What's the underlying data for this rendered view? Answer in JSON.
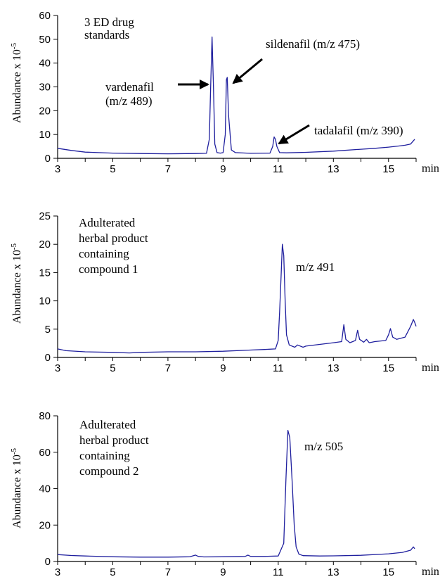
{
  "trace_color": "#1f1f9e",
  "chart_data": [
    {
      "type": "line",
      "ylabel": "Abundance x 10",
      "ylabel_exponent": "-5",
      "x_unit": "min",
      "xlim": [
        3,
        16
      ],
      "ylim": [
        0,
        60
      ],
      "x_ticks": [
        3,
        5,
        7,
        9,
        11,
        13,
        15
      ],
      "y_ticks": [
        0,
        10,
        20,
        30,
        40,
        50,
        60
      ],
      "annotations": [
        {
          "lines": [
            "3 ED drug",
            "standards"
          ]
        },
        {
          "lines": [
            "vardenafil",
            "(m/z 489)"
          ],
          "points_to": {
            "x": 8.62,
            "y": 30
          }
        },
        {
          "lines": [
            "sildenafil (m/z 475)"
          ],
          "points_to": {
            "x": 9.2,
            "y": 30
          }
        },
        {
          "lines": [
            "tadalafil (m/z 390)"
          ],
          "points_to": {
            "x": 10.9,
            "y": 9
          }
        }
      ],
      "series": [
        {
          "x": [
            3.0,
            3.5,
            4.0,
            5.0,
            6.0,
            7.0,
            8.0,
            8.4,
            8.5,
            8.55,
            8.6,
            8.65,
            8.7,
            8.78,
            8.9,
            9.0,
            9.08,
            9.12,
            9.15,
            9.2,
            9.3,
            9.45,
            10.0,
            10.7,
            10.8,
            10.85,
            10.9,
            10.95,
            11.05,
            11.3,
            12.0,
            13.0,
            14.0,
            14.5,
            15.0,
            15.4,
            15.6,
            15.8,
            15.95
          ],
          "y": [
            4.2,
            3.3,
            2.6,
            2.2,
            2.0,
            1.9,
            2.0,
            2.1,
            8,
            30,
            51,
            30,
            6,
            2.4,
            2.2,
            2.4,
            10,
            33,
            34,
            18,
            3.5,
            2.4,
            2.1,
            2.2,
            5,
            9,
            8,
            5,
            2.4,
            2.3,
            2.5,
            3.0,
            3.8,
            4.2,
            4.7,
            5.2,
            5.5,
            6.0,
            8.0
          ]
        }
      ]
    },
    {
      "type": "line",
      "ylabel": "Abundance x 10",
      "ylabel_exponent": "-5",
      "x_unit": "min",
      "xlim": [
        3,
        16
      ],
      "ylim": [
        0,
        25
      ],
      "x_ticks": [
        3,
        5,
        7,
        9,
        11,
        13,
        15
      ],
      "y_ticks": [
        0,
        5,
        10,
        15,
        20,
        25
      ],
      "annotations": [
        {
          "lines": [
            "Adulterated",
            "herbal product",
            "containing",
            "compound 1"
          ]
        },
        {
          "lines": [
            "m/z 491"
          ]
        }
      ],
      "series": [
        {
          "x": [
            3.0,
            3.3,
            4.0,
            5.0,
            5.6,
            6.0,
            7.0,
            8.0,
            9.0,
            10.0,
            10.5,
            10.9,
            11.0,
            11.05,
            11.1,
            11.15,
            11.2,
            11.25,
            11.3,
            11.4,
            11.6,
            11.7,
            11.9,
            12.0,
            12.5,
            13.0,
            13.3,
            13.38,
            13.45,
            13.6,
            13.8,
            13.88,
            13.95,
            14.1,
            14.2,
            14.3,
            14.5,
            14.9,
            15.0,
            15.07,
            15.15,
            15.3,
            15.6,
            15.8,
            15.9,
            15.95,
            16.0
          ],
          "y": [
            1.5,
            1.2,
            1.0,
            0.9,
            0.8,
            0.9,
            1.0,
            1.0,
            1.1,
            1.3,
            1.4,
            1.5,
            3,
            8,
            14,
            20,
            18,
            10,
            4,
            2.2,
            1.8,
            2.2,
            1.8,
            2.0,
            2.3,
            2.6,
            2.8,
            5.8,
            3.2,
            2.6,
            3.0,
            4.8,
            3.2,
            2.7,
            3.2,
            2.6,
            2.8,
            3.0,
            4.0,
            5.1,
            3.6,
            3.2,
            3.6,
            5.5,
            6.7,
            6.2,
            5.5
          ]
        }
      ]
    },
    {
      "type": "line",
      "ylabel": "Abundance x 10",
      "ylabel_exponent": "-5",
      "x_unit": "min",
      "xlim": [
        3,
        16
      ],
      "ylim": [
        0,
        80
      ],
      "x_ticks": [
        3,
        5,
        7,
        9,
        11,
        13,
        15
      ],
      "y_ticks": [
        0,
        20,
        40,
        60,
        80
      ],
      "annotations": [
        {
          "lines": [
            "Adulterated",
            "herbal product",
            "containing",
            "compound 2"
          ]
        },
        {
          "lines": [
            "m/z 505"
          ]
        }
      ],
      "series": [
        {
          "x": [
            3.0,
            3.5,
            4.0,
            5.0,
            6.0,
            7.0,
            7.8,
            8.0,
            8.1,
            8.3,
            9.0,
            9.8,
            9.9,
            10.0,
            10.5,
            11.0,
            11.2,
            11.28,
            11.35,
            11.42,
            11.5,
            11.58,
            11.65,
            11.75,
            11.9,
            12.5,
            13.0,
            14.0,
            15.0,
            15.5,
            15.8,
            15.9,
            15.95
          ],
          "y": [
            3.8,
            3.3,
            3.0,
            2.6,
            2.4,
            2.4,
            2.6,
            3.5,
            2.8,
            2.5,
            2.6,
            2.8,
            3.5,
            2.8,
            2.8,
            3.0,
            10,
            45,
            72,
            68,
            45,
            20,
            8,
            4,
            3.2,
            3.0,
            3.1,
            3.4,
            4.2,
            5.0,
            6.2,
            8.0,
            7.0
          ]
        }
      ]
    }
  ]
}
